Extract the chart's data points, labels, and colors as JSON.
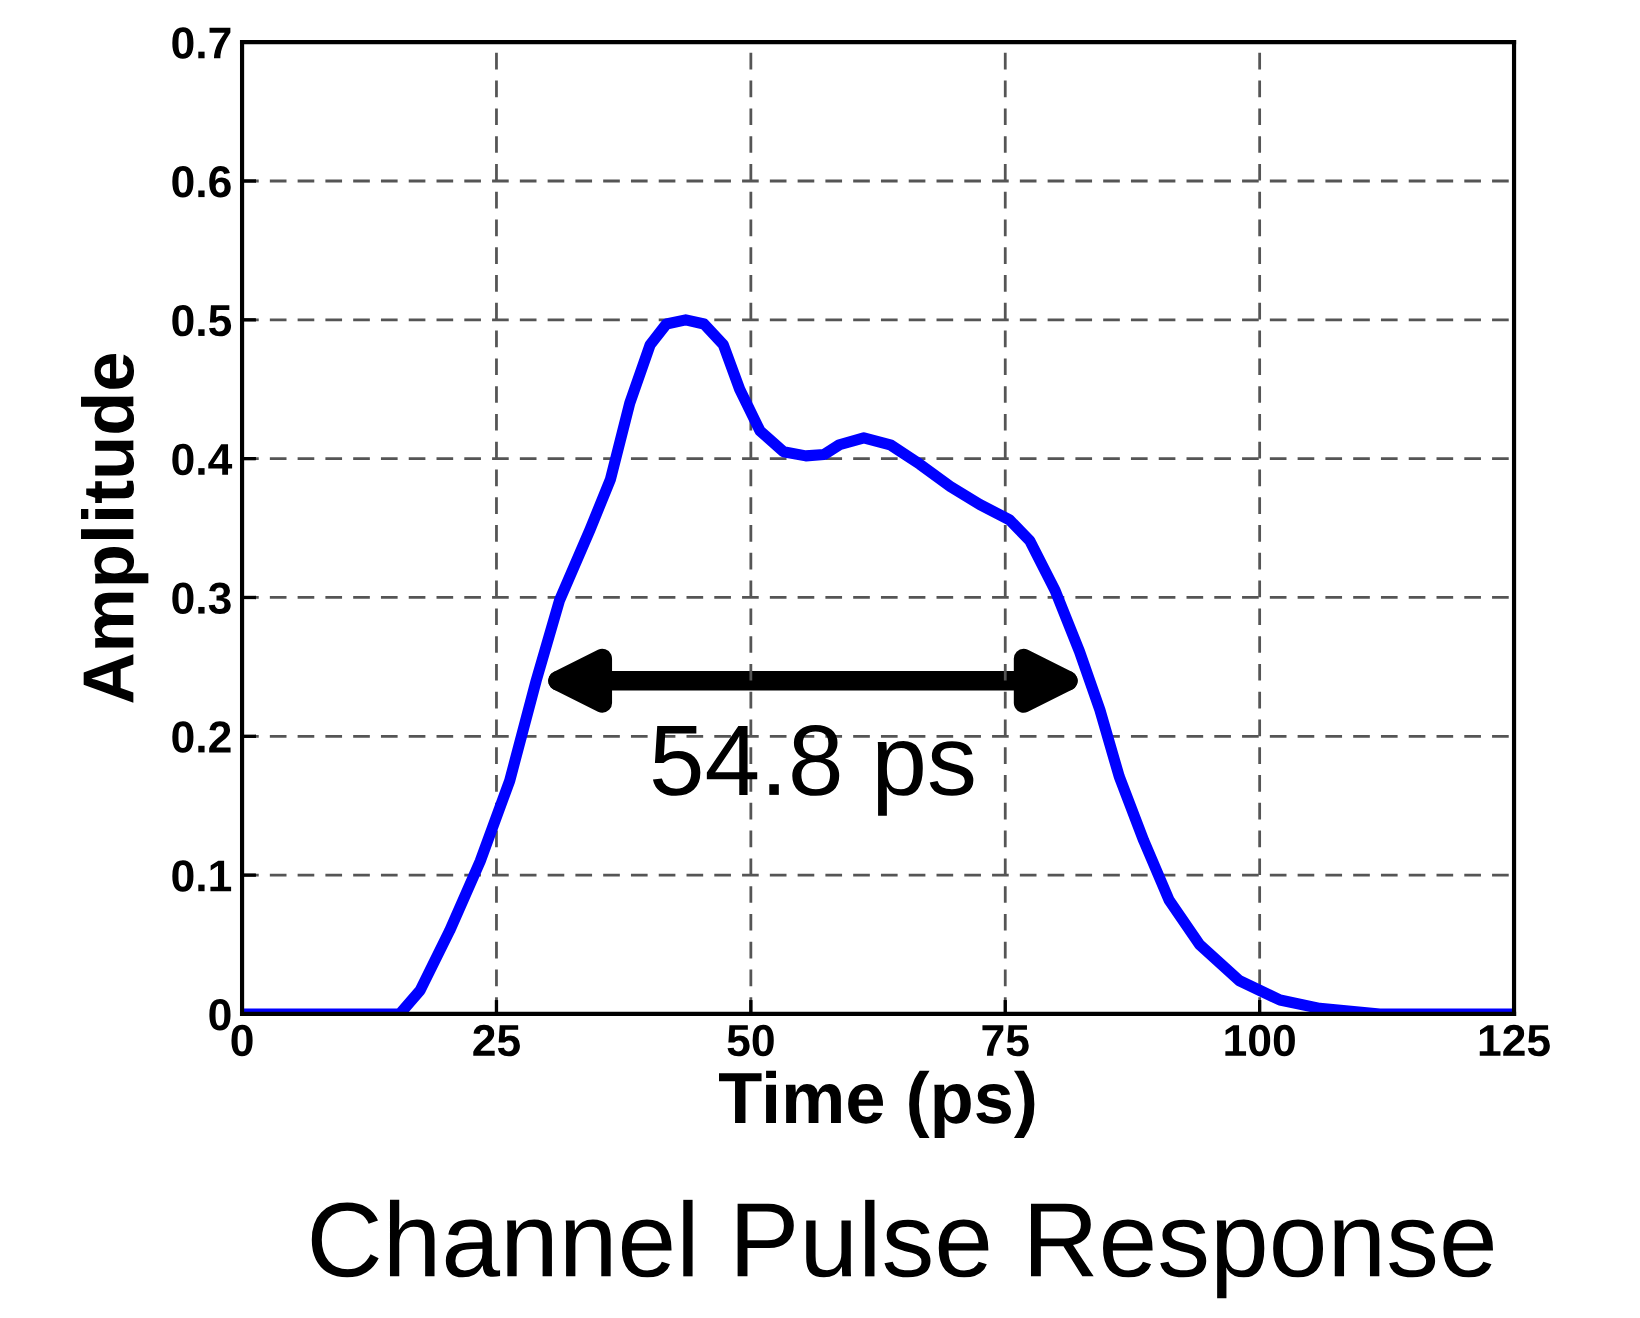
{
  "chart_data": {
    "type": "line",
    "title": "Channel Pulse Response",
    "xlabel": "Time (ps)",
    "ylabel": "Amplitude",
    "x": [
      0,
      15.5,
      17.5,
      20.4,
      23.4,
      26.3,
      28.9,
      31.2,
      34.2,
      36.2,
      38.1,
      40.1,
      41.7,
      43.6,
      45.4,
      47.3,
      48.9,
      50.9,
      53.2,
      55.4,
      57.2,
      58.7,
      61.1,
      63.7,
      66.6,
      69.6,
      72.5,
      75.4,
      77.4,
      79.9,
      82.3,
      84.3,
      86.2,
      88.6,
      91.1,
      94.1,
      98,
      102,
      105.9,
      111.8,
      125
    ],
    "series": [
      {
        "color": "#0000ff",
        "values": [
          0,
          0,
          0.017,
          0.06,
          0.11,
          0.168,
          0.24,
          0.298,
          0.349,
          0.385,
          0.44,
          0.482,
          0.497,
          0.5,
          0.497,
          0.482,
          0.45,
          0.42,
          0.405,
          0.402,
          0.403,
          0.41,
          0.415,
          0.41,
          0.396,
          0.38,
          0.367,
          0.356,
          0.341,
          0.305,
          0.261,
          0.219,
          0.171,
          0.125,
          0.082,
          0.05,
          0.024,
          0.01,
          0.004,
          0,
          0
        ]
      }
    ],
    "xlim": [
      0,
      125
    ],
    "xticks": [
      0,
      25,
      50,
      75,
      100,
      125
    ],
    "ylim": [
      0,
      0.7
    ],
    "yticks": [
      0,
      0.1,
      0.2,
      0.3,
      0.4,
      0.5,
      0.6,
      0.7
    ],
    "grid": true,
    "line_style": "solid",
    "marker": "none",
    "annotations": [
      "54.8 ps"
    ]
  }
}
